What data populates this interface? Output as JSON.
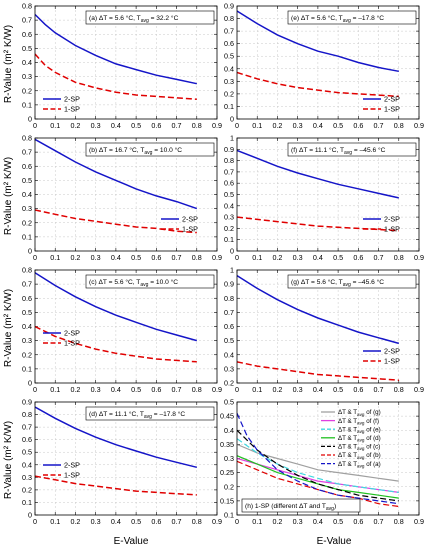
{
  "xlabel": "E-Value",
  "ylabel": "R-Value (m² K/W)",
  "chart_data": [
    {
      "id": "a",
      "type": "line",
      "annotation": "(a) ΔT = 5.6 °C, T",
      "annotation_sub": "avg",
      "annotation_tail": " = 32.2 °C",
      "xlim": [
        0,
        0.9
      ],
      "ylim": [
        0,
        0.8
      ],
      "yticks": [
        "0",
        "0.1",
        "0.2",
        "0.3",
        "0.4",
        "0.5",
        "0.6",
        "0.7",
        "0.8"
      ],
      "xticks": [
        "0",
        "0.1",
        "0.2",
        "0.3",
        "0.4",
        "0.5",
        "0.6",
        "0.7",
        "0.8",
        "0.9"
      ],
      "legend": "lower-left",
      "series": [
        {
          "name": "2-SP",
          "color": "#1515c8",
          "dash": "solid",
          "x": [
            0.0,
            0.05,
            0.1,
            0.2,
            0.3,
            0.4,
            0.5,
            0.6,
            0.7,
            0.8
          ],
          "y": [
            0.74,
            0.67,
            0.61,
            0.52,
            0.45,
            0.39,
            0.35,
            0.31,
            0.28,
            0.25
          ]
        },
        {
          "name": "1-SP",
          "color": "#e00000",
          "dash": "dashed",
          "x": [
            0.0,
            0.05,
            0.1,
            0.2,
            0.3,
            0.4,
            0.5,
            0.6,
            0.7,
            0.8
          ],
          "y": [
            0.46,
            0.38,
            0.33,
            0.26,
            0.22,
            0.19,
            0.17,
            0.16,
            0.15,
            0.14
          ]
        }
      ]
    },
    {
      "id": "e",
      "type": "line",
      "annotation": "(e) ΔT = 5.6 °C, T",
      "annotation_sub": "avg",
      "annotation_tail": " = –17.8 °C",
      "xlim": [
        0,
        0.9
      ],
      "ylim": [
        0,
        0.9
      ],
      "yticks": [
        "0",
        "0.1",
        "0.2",
        "0.3",
        "0.4",
        "0.5",
        "0.6",
        "0.7",
        "0.8",
        "0.9"
      ],
      "xticks": [
        "0",
        "0.1",
        "0.2",
        "0.3",
        "0.4",
        "0.5",
        "0.6",
        "0.7",
        "0.8",
        "0.9"
      ],
      "legend": "center-right",
      "series": [
        {
          "name": "2-SP",
          "color": "#1515c8",
          "dash": "solid",
          "x": [
            0.0,
            0.1,
            0.2,
            0.3,
            0.4,
            0.5,
            0.6,
            0.7,
            0.8
          ],
          "y": [
            0.86,
            0.76,
            0.67,
            0.6,
            0.54,
            0.5,
            0.45,
            0.41,
            0.38
          ]
        },
        {
          "name": "1-SP",
          "color": "#e00000",
          "dash": "dashed",
          "x": [
            0.0,
            0.1,
            0.2,
            0.3,
            0.4,
            0.5,
            0.6,
            0.7,
            0.8
          ],
          "y": [
            0.37,
            0.32,
            0.28,
            0.25,
            0.23,
            0.21,
            0.2,
            0.19,
            0.18
          ]
        }
      ]
    },
    {
      "id": "b",
      "type": "line",
      "annotation": "(b) ΔT = 16.7 °C, T",
      "annotation_sub": "avg",
      "annotation_tail": " = 10.0 °C",
      "xlim": [
        0,
        0.9
      ],
      "ylim": [
        0,
        0.8
      ],
      "yticks": [
        "0",
        "0.1",
        "0.2",
        "0.3",
        "0.4",
        "0.5",
        "0.6",
        "0.7",
        "0.8"
      ],
      "xticks": [
        "0",
        "0.1",
        "0.2",
        "0.3",
        "0.4",
        "0.5",
        "0.6",
        "0.7",
        "0.8",
        "0.9"
      ],
      "legend": "center-right",
      "series": [
        {
          "name": "2-SP",
          "color": "#1515c8",
          "dash": "solid",
          "x": [
            0.0,
            0.1,
            0.2,
            0.3,
            0.4,
            0.5,
            0.6,
            0.7,
            0.8
          ],
          "y": [
            0.79,
            0.71,
            0.63,
            0.56,
            0.5,
            0.44,
            0.39,
            0.35,
            0.3
          ]
        },
        {
          "name": "1-SP",
          "color": "#e00000",
          "dash": "dashed",
          "x": [
            0.0,
            0.1,
            0.2,
            0.3,
            0.4,
            0.5,
            0.6,
            0.7,
            0.8
          ],
          "y": [
            0.29,
            0.26,
            0.23,
            0.21,
            0.19,
            0.17,
            0.16,
            0.14,
            0.13
          ]
        }
      ]
    },
    {
      "id": "f",
      "type": "line",
      "annotation": "(f) ΔT = 11.1 °C, T",
      "annotation_sub": "avg",
      "annotation_tail": " = –45.6 °C",
      "xlim": [
        0,
        0.9
      ],
      "ylim": [
        0,
        1.0
      ],
      "yticks": [
        "0",
        "0.1",
        "0.2",
        "0.3",
        "0.4",
        "0.5",
        "0.6",
        "0.7",
        "0.8",
        "0.9",
        "1"
      ],
      "xticks": [
        "0",
        "0.1",
        "0.2",
        "0.3",
        "0.4",
        "0.5",
        "0.6",
        "0.7",
        "0.8",
        "0.9"
      ],
      "legend": "center-right",
      "series": [
        {
          "name": "2-SP",
          "color": "#1515c8",
          "dash": "solid",
          "x": [
            0.0,
            0.1,
            0.2,
            0.3,
            0.4,
            0.5,
            0.6,
            0.7,
            0.8
          ],
          "y": [
            0.89,
            0.82,
            0.75,
            0.69,
            0.64,
            0.59,
            0.55,
            0.51,
            0.47
          ]
        },
        {
          "name": "1-SP",
          "color": "#e00000",
          "dash": "dashed",
          "x": [
            0.0,
            0.1,
            0.2,
            0.3,
            0.4,
            0.5,
            0.6,
            0.7,
            0.8
          ],
          "y": [
            0.3,
            0.28,
            0.26,
            0.24,
            0.22,
            0.21,
            0.2,
            0.19,
            0.18
          ]
        }
      ]
    },
    {
      "id": "c",
      "type": "line",
      "annotation": "(c) ΔT = 5.6 °C, T",
      "annotation_sub": "avg",
      "annotation_tail": " = 10.0 °C",
      "xlim": [
        0,
        0.9
      ],
      "ylim": [
        0,
        0.8
      ],
      "yticks": [
        "0",
        "0.1",
        "0.2",
        "0.3",
        "0.4",
        "0.5",
        "0.6",
        "0.7",
        "0.8"
      ],
      "xticks": [
        "0",
        "0.1",
        "0.2",
        "0.3",
        "0.4",
        "0.5",
        "0.6",
        "0.7",
        "0.8",
        "0.9"
      ],
      "legend": "center-left",
      "series": [
        {
          "name": "2-SP",
          "color": "#1515c8",
          "dash": "solid",
          "x": [
            0.0,
            0.1,
            0.2,
            0.3,
            0.4,
            0.5,
            0.6,
            0.7,
            0.8
          ],
          "y": [
            0.78,
            0.69,
            0.61,
            0.54,
            0.48,
            0.43,
            0.38,
            0.34,
            0.3
          ]
        },
        {
          "name": "1-SP",
          "color": "#e00000",
          "dash": "dashed",
          "x": [
            0.0,
            0.1,
            0.2,
            0.3,
            0.4,
            0.5,
            0.6,
            0.7,
            0.8
          ],
          "y": [
            0.4,
            0.33,
            0.28,
            0.24,
            0.21,
            0.19,
            0.17,
            0.16,
            0.15
          ]
        }
      ]
    },
    {
      "id": "g",
      "type": "line",
      "annotation": "(g) ΔT = 5.6 °C, T",
      "annotation_sub": "avg",
      "annotation_tail": " = –45.6 °C",
      "xlim": [
        0,
        0.9
      ],
      "ylim": [
        0.2,
        1.0
      ],
      "yticks": [
        "0.2",
        "0.3",
        "0.4",
        "0.5",
        "0.6",
        "0.7",
        "0.8",
        "0.9",
        "1"
      ],
      "xticks": [
        "0",
        "0.1",
        "0.2",
        "0.3",
        "0.4",
        "0.5",
        "0.6",
        "0.7",
        "0.8",
        "0.9"
      ],
      "legend": "center-right",
      "series": [
        {
          "name": "2-SP",
          "color": "#1515c8",
          "dash": "solid",
          "x": [
            0.0,
            0.1,
            0.2,
            0.3,
            0.4,
            0.5,
            0.6,
            0.7,
            0.8
          ],
          "y": [
            0.96,
            0.87,
            0.79,
            0.72,
            0.66,
            0.61,
            0.56,
            0.52,
            0.48
          ]
        },
        {
          "name": "1-SP",
          "color": "#e00000",
          "dash": "dashed",
          "x": [
            0.0,
            0.1,
            0.2,
            0.3,
            0.4,
            0.5,
            0.6,
            0.7,
            0.8
          ],
          "y": [
            0.35,
            0.32,
            0.3,
            0.28,
            0.26,
            0.25,
            0.24,
            0.23,
            0.22
          ]
        }
      ]
    },
    {
      "id": "d",
      "type": "line",
      "annotation": "(d) ΔT = 11.1 °C, T",
      "annotation_sub": "avg",
      "annotation_tail": " = –17.8 °C",
      "xlim": [
        0,
        0.9
      ],
      "ylim": [
        0,
        0.9
      ],
      "yticks": [
        "0",
        "0.1",
        "0.2",
        "0.3",
        "0.4",
        "0.5",
        "0.6",
        "0.7",
        "0.8",
        "0.9"
      ],
      "xticks": [
        "0",
        "0.1",
        "0.2",
        "0.3",
        "0.4",
        "0.5",
        "0.6",
        "0.7",
        "0.8",
        "0.9"
      ],
      "legend": "center-left",
      "series": [
        {
          "name": "2-SP",
          "color": "#1515c8",
          "dash": "solid",
          "x": [
            0.0,
            0.1,
            0.2,
            0.3,
            0.4,
            0.5,
            0.6,
            0.7,
            0.8
          ],
          "y": [
            0.86,
            0.77,
            0.69,
            0.62,
            0.56,
            0.51,
            0.46,
            0.42,
            0.38
          ]
        },
        {
          "name": "1-SP",
          "color": "#e00000",
          "dash": "dashed",
          "x": [
            0.0,
            0.1,
            0.2,
            0.3,
            0.4,
            0.5,
            0.6,
            0.7,
            0.8
          ],
          "y": [
            0.31,
            0.28,
            0.25,
            0.23,
            0.21,
            0.19,
            0.18,
            0.17,
            0.16
          ]
        }
      ]
    },
    {
      "id": "h",
      "type": "line",
      "annotation": "(h) 1-SP (different ΔT and T",
      "annotation_sub": "avg",
      "annotation_tail": ")",
      "xlim": [
        0,
        0.9
      ],
      "ylim": [
        0.1,
        0.5
      ],
      "yticks": [
        "0.1",
        "0.15",
        "0.2",
        "0.25",
        "0.3",
        "0.35",
        "0.4",
        "0.45",
        "0.5"
      ],
      "xticks": [
        "0",
        "0.1",
        "0.2",
        "0.3",
        "0.4",
        "0.5",
        "0.6",
        "0.7",
        "0.8",
        "0.9"
      ],
      "legend": "top-right",
      "series": [
        {
          "name": "ΔT & Tavg of (g)",
          "legend_main": "ΔT & T",
          "legend_sub": "avg",
          "legend_tail": " of (g)",
          "color": "#a0a0a0",
          "dash": "solid",
          "x": [
            0.0,
            0.1,
            0.2,
            0.3,
            0.4,
            0.5,
            0.6,
            0.7,
            0.8
          ],
          "y": [
            0.35,
            0.32,
            0.3,
            0.28,
            0.26,
            0.25,
            0.24,
            0.23,
            0.22
          ]
        },
        {
          "name": "ΔT & Tavg of (f)",
          "legend_main": "ΔT & T",
          "legend_sub": "avg",
          "legend_tail": " of (f)",
          "color": "#e040e0",
          "dash": "solid",
          "x": [
            0.0,
            0.1,
            0.2,
            0.3,
            0.4,
            0.5,
            0.6,
            0.7,
            0.8
          ],
          "y": [
            0.3,
            0.28,
            0.26,
            0.24,
            0.22,
            0.21,
            0.2,
            0.19,
            0.18
          ]
        },
        {
          "name": "ΔT & Tavg of (e)",
          "legend_main": "ΔT & T",
          "legend_sub": "avg",
          "legend_tail": " of (e)",
          "color": "#40d8e0",
          "dash": "dashed",
          "x": [
            0.0,
            0.1,
            0.2,
            0.3,
            0.4,
            0.5,
            0.6,
            0.7,
            0.8
          ],
          "y": [
            0.37,
            0.32,
            0.28,
            0.25,
            0.23,
            0.21,
            0.2,
            0.19,
            0.18
          ]
        },
        {
          "name": "ΔT & Tavg of (d)",
          "legend_main": "ΔT & T",
          "legend_sub": "avg",
          "legend_tail": " of (d)",
          "color": "#20c020",
          "dash": "solid",
          "x": [
            0.0,
            0.1,
            0.2,
            0.3,
            0.4,
            0.5,
            0.6,
            0.7,
            0.8
          ],
          "y": [
            0.31,
            0.28,
            0.25,
            0.23,
            0.21,
            0.19,
            0.18,
            0.17,
            0.16
          ]
        },
        {
          "name": "ΔT & Tavg of (c)",
          "legend_main": "ΔT & T",
          "legend_sub": "avg",
          "legend_tail": " of (c)",
          "color": "#000000",
          "dash": "dashed",
          "x": [
            0.0,
            0.1,
            0.2,
            0.3,
            0.4,
            0.5,
            0.6,
            0.7,
            0.8
          ],
          "y": [
            0.4,
            0.33,
            0.28,
            0.24,
            0.21,
            0.19,
            0.17,
            0.16,
            0.15
          ]
        },
        {
          "name": "ΔT & Tavg of (b)",
          "legend_main": "ΔT & T",
          "legend_sub": "avg",
          "legend_tail": " of (b)",
          "color": "#e00000",
          "dash": "dashed",
          "x": [
            0.0,
            0.1,
            0.2,
            0.3,
            0.4,
            0.5,
            0.6,
            0.7,
            0.8
          ],
          "y": [
            0.29,
            0.26,
            0.23,
            0.21,
            0.19,
            0.17,
            0.16,
            0.14,
            0.13
          ]
        },
        {
          "name": "ΔT & Tavg of (a)",
          "legend_main": "ΔT & T",
          "legend_sub": "avg",
          "legend_tail": " of (a)",
          "color": "#1515c8",
          "dash": "dashed",
          "x": [
            0.0,
            0.05,
            0.1,
            0.2,
            0.3,
            0.4,
            0.5,
            0.6,
            0.7,
            0.8
          ],
          "y": [
            0.46,
            0.38,
            0.33,
            0.26,
            0.22,
            0.19,
            0.17,
            0.16,
            0.15,
            0.14
          ]
        }
      ]
    }
  ]
}
